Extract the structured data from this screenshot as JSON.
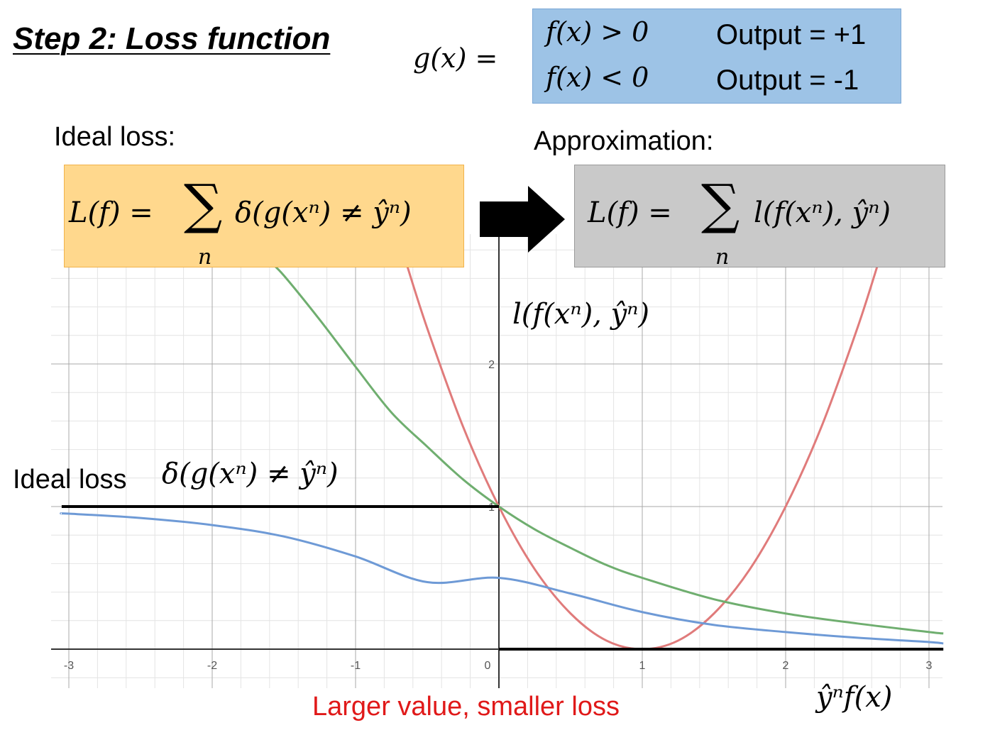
{
  "header": {
    "title": "Step 2: Loss function",
    "g_lhs": "g(x) =",
    "rule_1_condition": "f(x) > 0",
    "rule_1_output": "Output = +1",
    "rule_2_condition": "f(x) < 0",
    "rule_2_output": "Output = -1"
  },
  "ideal": {
    "label": "Ideal loss:",
    "lhs": "L(f) =",
    "sum_symbol": "∑",
    "sum_index": "n",
    "rhs": "δ(g(xⁿ) ≠ ŷⁿ)",
    "box_color": "#ffd88d"
  },
  "approx": {
    "label": "Approximation:",
    "lhs": "L(f) =",
    "sum_symbol": "∑",
    "sum_index": "n",
    "rhs": "l(f(xⁿ), ŷⁿ)",
    "box_color": "#c9c9c9"
  },
  "arrow": {
    "icon": "right-arrow-icon",
    "color": "#000000"
  },
  "chart_data": {
    "type": "line",
    "xlabel": "ŷⁿf(x)",
    "ylabel": "l(f(xⁿ), ŷⁿ)",
    "xlim": [
      -3.05,
      3.1
    ],
    "ylim": [
      -0.27,
      2.95
    ],
    "x_ticks": [
      -3,
      -2,
      -1,
      0,
      1,
      2,
      3
    ],
    "y_ticks": [
      2,
      1
    ],
    "x_tick_labels": [
      "-3",
      "-2",
      "-1",
      "0",
      "1",
      "2",
      "3"
    ],
    "y_tick_labels": [
      "2",
      "1"
    ],
    "grid": true,
    "series": [
      {
        "color": "#e07b7b",
        "x": [
          -0.65,
          -0.5,
          -0.25,
          0,
          0.25,
          0.5,
          0.75,
          1,
          1.25,
          1.5,
          1.75,
          2,
          2.25,
          2.5,
          2.65
        ],
        "y": [
          2.72,
          2.25,
          1.56,
          1.0,
          0.56,
          0.25,
          0.06,
          0,
          0.06,
          0.25,
          0.56,
          1.0,
          1.56,
          2.25,
          2.72
        ]
      },
      {
        "color": "#6fae6f",
        "x": [
          -1.6,
          -1.5,
          -1.25,
          -1,
          -0.75,
          -0.5,
          -0.25,
          0,
          0.25,
          0.5,
          0.75,
          1,
          1.5,
          2,
          2.5,
          3,
          3.1
        ],
        "y": [
          2.72,
          2.62,
          2.31,
          1.98,
          1.66,
          1.42,
          1.19,
          1.0,
          0.84,
          0.71,
          0.59,
          0.5,
          0.35,
          0.25,
          0.18,
          0.12,
          0.11
        ],
        "notes": "values approximate"
      },
      {
        "color": "#6e9ad6",
        "x": [
          -3.05,
          -3,
          -2.5,
          -2,
          -1.5,
          -1,
          -0.5,
          0,
          0.5,
          1,
          1.5,
          2,
          2.5,
          3,
          3.1
        ],
        "y": [
          0.95,
          0.95,
          0.92,
          0.87,
          0.79,
          0.65,
          0.47,
          0.5,
          0.39,
          0.26,
          0.17,
          0.12,
          0.08,
          0.05,
          0.04
        ]
      },
      {
        "color": "#000000",
        "x": [
          -3.05,
          0,
          0,
          3.1
        ],
        "y": [
          1,
          1,
          0,
          0
        ]
      }
    ]
  },
  "annotations": {
    "ideal_loss_label": "Ideal loss",
    "ideal_loss_formula": "δ(g(xⁿ) ≠ ŷⁿ)",
    "bottom_note": "Larger value, smaller loss",
    "bottom_note_color": "#e01919"
  }
}
